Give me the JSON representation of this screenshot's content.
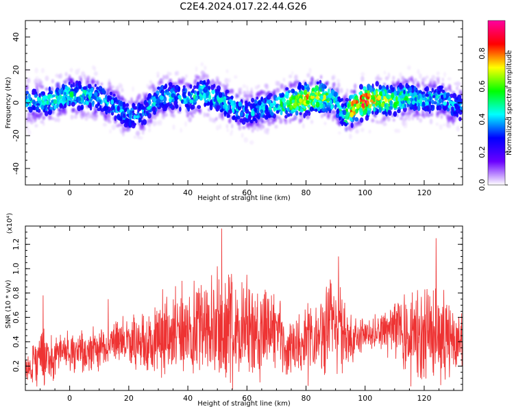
{
  "title": "C2E4.2024.017.22.44.G26",
  "chart_data": [
    {
      "type": "heatmap",
      "xlabel": "Height of straight line (km)",
      "ylabel": "Frequency (Hz)",
      "xlim": [
        -15,
        133
      ],
      "ylim": [
        -50,
        50
      ],
      "xticks": [
        "0",
        "20",
        "40",
        "60",
        "80",
        "100",
        "120"
      ],
      "yticks": [
        "-40",
        "-20",
        "0",
        "20",
        "40"
      ],
      "colorbar": {
        "label": "Normalized spectral amplitude",
        "range": [
          0,
          1
        ],
        "ticks": [
          "0.0",
          "0.2",
          "0.4",
          "0.6",
          "0.8"
        ],
        "colors": [
          "#ffffff",
          "#6a00ff",
          "#0000ff",
          "#00ffff",
          "#00ff00",
          "#ffff00",
          "#ff0000",
          "#ff00a0"
        ]
      },
      "centerline": {
        "x": [
          -15,
          -10,
          -5,
          0,
          5,
          10,
          15,
          20,
          25,
          30,
          35,
          40,
          45,
          50,
          55,
          60,
          65,
          70,
          75,
          80,
          85,
          90,
          93,
          95,
          100,
          105,
          110,
          115,
          120,
          125,
          130,
          133
        ],
        "y": [
          1,
          0,
          2,
          5,
          4,
          3,
          -2,
          -8,
          -6,
          3,
          4,
          2,
          6,
          2,
          -2,
          -6,
          -3,
          -2,
          1,
          2,
          4,
          1,
          -8,
          -4,
          1,
          2,
          1,
          4,
          1,
          3,
          -2,
          -3
        ],
        "peak": [
          0.45,
          0.45,
          0.5,
          0.5,
          0.5,
          0.45,
          0.4,
          0.4,
          0.4,
          0.45,
          0.45,
          0.45,
          0.5,
          0.45,
          0.45,
          0.4,
          0.45,
          0.45,
          0.7,
          0.8,
          0.7,
          0.5,
          0.55,
          0.8,
          0.95,
          0.7,
          0.6,
          0.5,
          0.45,
          0.45,
          0.4,
          0.4
        ],
        "spread_hz": 12
      }
    },
    {
      "type": "line",
      "xlabel": "Height of straight line (km)",
      "ylabel": "SNR (10 * v/v)",
      "y_multiplier": "(x10⁴)",
      "xlim": [
        -15,
        133
      ],
      "ylim": [
        0,
        1.35
      ],
      "xticks": [
        "0",
        "20",
        "40",
        "60",
        "80",
        "100",
        "120"
      ],
      "yticks": [
        "0.2",
        "0.4",
        "0.6",
        "0.8",
        "1.0",
        "1.2"
      ],
      "color": "#ee3333",
      "envelope": {
        "x": [
          -15,
          -10,
          -5,
          0,
          5,
          10,
          13,
          15,
          20,
          25,
          30,
          35,
          40,
          45,
          50,
          55,
          60,
          65,
          70,
          75,
          80,
          85,
          90,
          95,
          100,
          105,
          110,
          115,
          120,
          125,
          130,
          133
        ],
        "mean": [
          0.2,
          0.25,
          0.28,
          0.32,
          0.32,
          0.35,
          0.3,
          0.42,
          0.4,
          0.42,
          0.45,
          0.48,
          0.5,
          0.48,
          0.5,
          0.48,
          0.46,
          0.48,
          0.46,
          0.35,
          0.4,
          0.48,
          0.5,
          0.45,
          0.48,
          0.48,
          0.5,
          0.42,
          0.45,
          0.45,
          0.42,
          0.4
        ],
        "amp": [
          0.18,
          0.3,
          0.22,
          0.2,
          0.22,
          0.2,
          0.15,
          0.2,
          0.25,
          0.35,
          0.38,
          0.4,
          0.45,
          0.48,
          0.55,
          0.5,
          0.45,
          0.45,
          0.42,
          0.3,
          0.4,
          0.45,
          0.5,
          0.3,
          0.15,
          0.15,
          0.35,
          0.45,
          0.5,
          0.45,
          0.35,
          0.3
        ]
      },
      "peaks": [
        {
          "x": -9,
          "y": 0.78
        },
        {
          "x": 13,
          "y": 0.75
        },
        {
          "x": 38,
          "y": 0.9
        },
        {
          "x": 50,
          "y": 1.02
        },
        {
          "x": 51.5,
          "y": 1.33
        },
        {
          "x": 60,
          "y": 0.95
        },
        {
          "x": 91,
          "y": 1.1
        },
        {
          "x": 108,
          "y": 0.55
        },
        {
          "x": 124,
          "y": 1.25
        }
      ]
    }
  ]
}
